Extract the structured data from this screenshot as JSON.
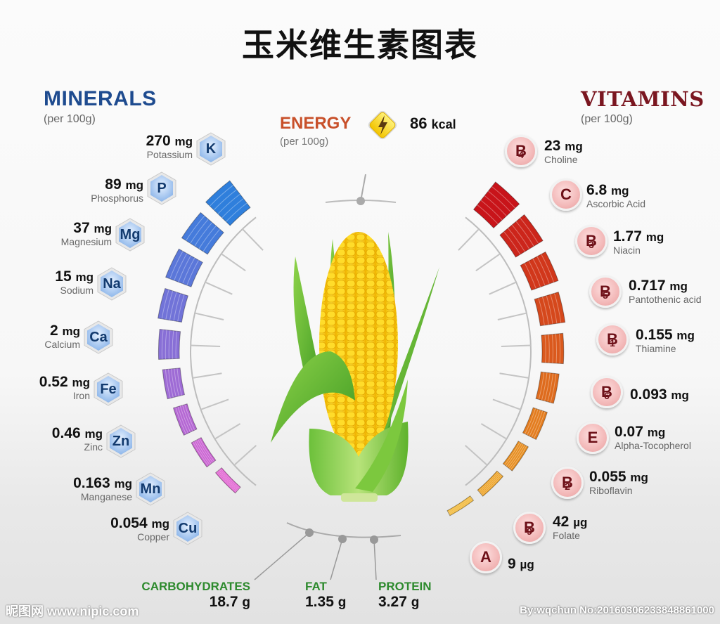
{
  "title": "玉米维生素图表",
  "minerals": {
    "heading": "MINERALS",
    "subheading": "(per 100g)",
    "color_start": "#2f7fdc",
    "color_end": "#e05fd0"
  },
  "vitamins": {
    "heading": "VITAMINS",
    "subheading": "(per 100g)",
    "color_start": "#c8141a",
    "color_end": "#f0b020"
  },
  "energy": {
    "heading": "ENERGY",
    "subheading": "(per 100g)",
    "value": "86",
    "unit": "kcal",
    "icon": "lightning-bolt-icon"
  },
  "macros": [
    {
      "label": "CARBOHYDRATES",
      "value": "18.7",
      "unit": "g"
    },
    {
      "label": "FAT",
      "value": "1.35",
      "unit": "g"
    },
    {
      "label": "PROTEIN",
      "value": "3.27",
      "unit": "g"
    }
  ],
  "watermark": {
    "left": "昵图网 www.nipic.com",
    "right": "By:wqchun No:20160306233848861000"
  },
  "chart_data": {
    "type": "radial-bar",
    "title": "玉米维生素图表",
    "subject": "Corn (per 100g)",
    "energy": {
      "value": 86,
      "unit": "kcal"
    },
    "macronutrients": [
      {
        "name": "Carbohydrates",
        "value": 18.7,
        "unit": "g"
      },
      {
        "name": "Fat",
        "value": 1.35,
        "unit": "g"
      },
      {
        "name": "Protein",
        "value": 3.27,
        "unit": "g"
      }
    ],
    "series": [
      {
        "name": "Minerals",
        "items": [
          {
            "symbol": "K",
            "name": "Potassium",
            "value": 270,
            "unit": "mg"
          },
          {
            "symbol": "P",
            "name": "Phosphorus",
            "value": 89,
            "unit": "mg"
          },
          {
            "symbol": "Mg",
            "name": "Magnesium",
            "value": 37,
            "unit": "mg"
          },
          {
            "symbol": "Na",
            "name": "Sodium",
            "value": 15,
            "unit": "mg"
          },
          {
            "symbol": "Ca",
            "name": "Calcium",
            "value": 2,
            "unit": "mg"
          },
          {
            "symbol": "Fe",
            "name": "Iron",
            "value": 0.52,
            "unit": "mg"
          },
          {
            "symbol": "Zn",
            "name": "Zinc",
            "value": 0.46,
            "unit": "mg"
          },
          {
            "symbol": "Mn",
            "name": "Manganese",
            "value": 0.163,
            "unit": "mg"
          },
          {
            "symbol": "Cu",
            "name": "Copper",
            "value": 0.054,
            "unit": "mg"
          }
        ]
      },
      {
        "name": "Vitamins",
        "items": [
          {
            "symbol": "B",
            "sub": "4",
            "name": "Choline",
            "value": 23,
            "unit": "mg"
          },
          {
            "symbol": "C",
            "sub": "",
            "name": "Ascorbic Acid",
            "value": 6.8,
            "unit": "mg"
          },
          {
            "symbol": "B",
            "sub": "3",
            "name": "Niacin",
            "value": 1.77,
            "unit": "mg"
          },
          {
            "symbol": "B",
            "sub": "5",
            "name": "Pantothenic acid",
            "value": 0.717,
            "unit": "mg"
          },
          {
            "symbol": "B",
            "sub": "1",
            "name": "Thiamine",
            "value": 0.155,
            "unit": "mg"
          },
          {
            "symbol": "B",
            "sub": "6",
            "name": "",
            "value": 0.093,
            "unit": "mg"
          },
          {
            "symbol": "E",
            "sub": "",
            "name": "Alpha-Tocopherol",
            "value": 0.07,
            "unit": "mg"
          },
          {
            "symbol": "B",
            "sub": "2",
            "name": "Riboflavin",
            "value": 0.055,
            "unit": "mg"
          },
          {
            "symbol": "B",
            "sub": "9",
            "name": "Folate",
            "value": 42,
            "unit": "µg"
          },
          {
            "symbol": "A",
            "sub": "",
            "name": "",
            "value": 9,
            "unit": "µg"
          }
        ]
      }
    ]
  }
}
